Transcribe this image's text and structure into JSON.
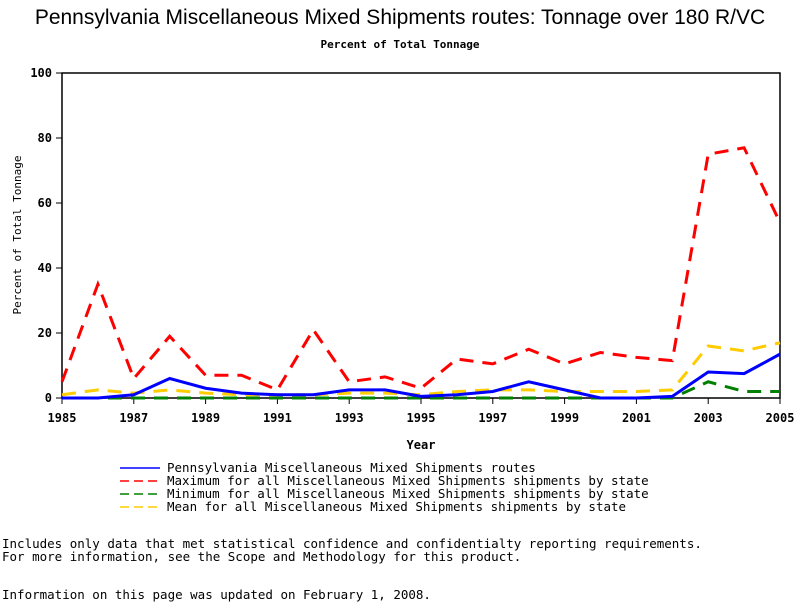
{
  "chart_data": {
    "type": "line",
    "title": "Pennsylvania Miscellaneous Mixed Shipments routes: Tonnage over 180 R/VC",
    "subtitle": "Percent of Total Tonnage",
    "xlabel": "Year",
    "ylabel": "Percent of Total Tonnage",
    "xlim": [
      1985,
      2005
    ],
    "ylim": [
      0,
      100
    ],
    "xticks": [
      "1985",
      "1987",
      "1989",
      "1991",
      "1993",
      "1995",
      "1997",
      "1999",
      "2001",
      "2003",
      "2005"
    ],
    "yticks": [
      "0",
      "20",
      "40",
      "60",
      "80",
      "100"
    ],
    "x": [
      1985,
      1986,
      1987,
      1988,
      1989,
      1990,
      1991,
      1992,
      1993,
      1994,
      1995,
      1996,
      1997,
      1998,
      1999,
      2000,
      2001,
      2002,
      2003,
      2004,
      2005
    ],
    "series": [
      {
        "name": "Pennsylvania Miscellaneous Mixed Shipments routes",
        "color": "#0000ff",
        "dash": false,
        "values": [
          0,
          0,
          1,
          6,
          3,
          1.5,
          1,
          1,
          2.5,
          2.5,
          0.5,
          1,
          2,
          5,
          2.5,
          0,
          0,
          0.5,
          8,
          7.5,
          13.5
        ]
      },
      {
        "name": "Maximum for all Miscellaneous Mixed Shipments shipments by state",
        "color": "#ff0000",
        "dash": true,
        "values": [
          5,
          35,
          6,
          19,
          7,
          7,
          2.5,
          21,
          5,
          6.5,
          3,
          12,
          10.5,
          15,
          10.5,
          14,
          12.5,
          11.5,
          75,
          77,
          54
        ]
      },
      {
        "name": "Minimum for all Miscellaneous Mixed Shipments shipments by state",
        "color": "#008000",
        "dash": true,
        "values": [
          0,
          0,
          0,
          0,
          0,
          0,
          0,
          0,
          0,
          0,
          0,
          0,
          0,
          0,
          0,
          0,
          0,
          0,
          5,
          2,
          2
        ]
      },
      {
        "name": "Mean for all Miscellaneous Mixed Shipments shipments by state",
        "color": "#ffcc00",
        "dash": true,
        "values": [
          1,
          2.5,
          1.5,
          2.5,
          1.5,
          1,
          1,
          1,
          1.5,
          1.5,
          1,
          2,
          2.5,
          2.5,
          2,
          2,
          2,
          2.5,
          16,
          14.5,
          17
        ]
      }
    ]
  },
  "notes": [
    "Includes only data that met statistical confidence and confidentialty reporting requirements.",
    "For more information, see the Scope and Methodology for this product.",
    "Information on this page was updated on February 1, 2008."
  ]
}
